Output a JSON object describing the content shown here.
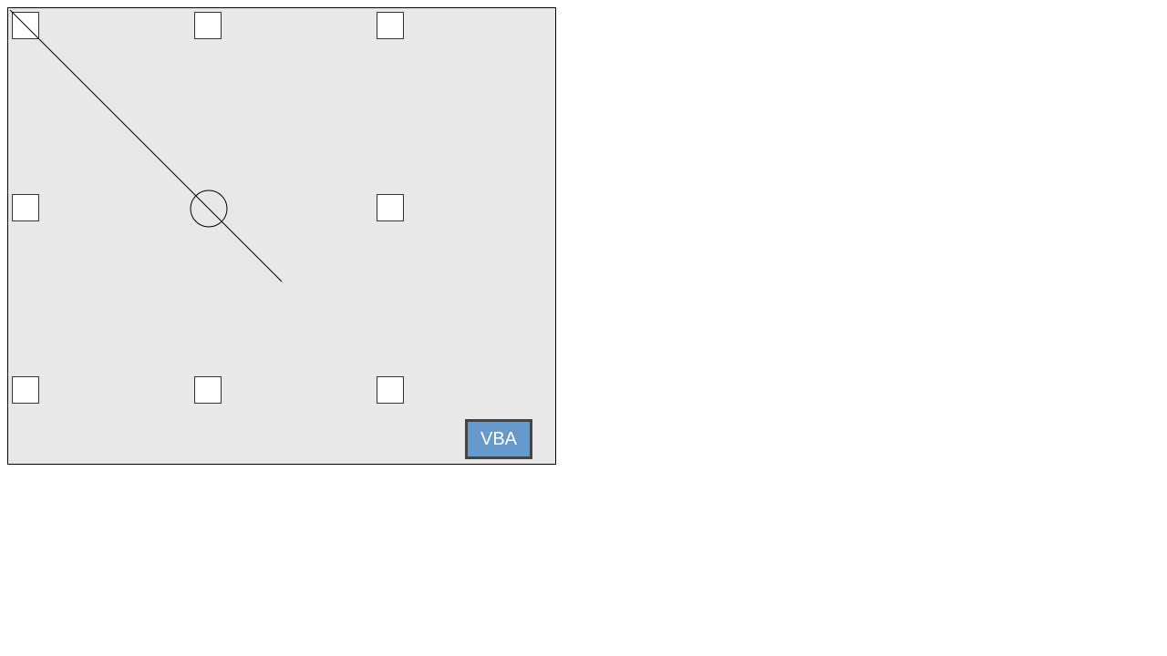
{
  "board": {
    "background": "#e8e8e8",
    "border_color": "#000000",
    "target_fill": "#ffffff",
    "target_border": "#333333",
    "center_marker": "circle",
    "line_color": "#000000"
  },
  "vba_button": {
    "label": "VBA",
    "fill": "#6699cc",
    "border": "#444444",
    "text_color": "#ffffff"
  }
}
